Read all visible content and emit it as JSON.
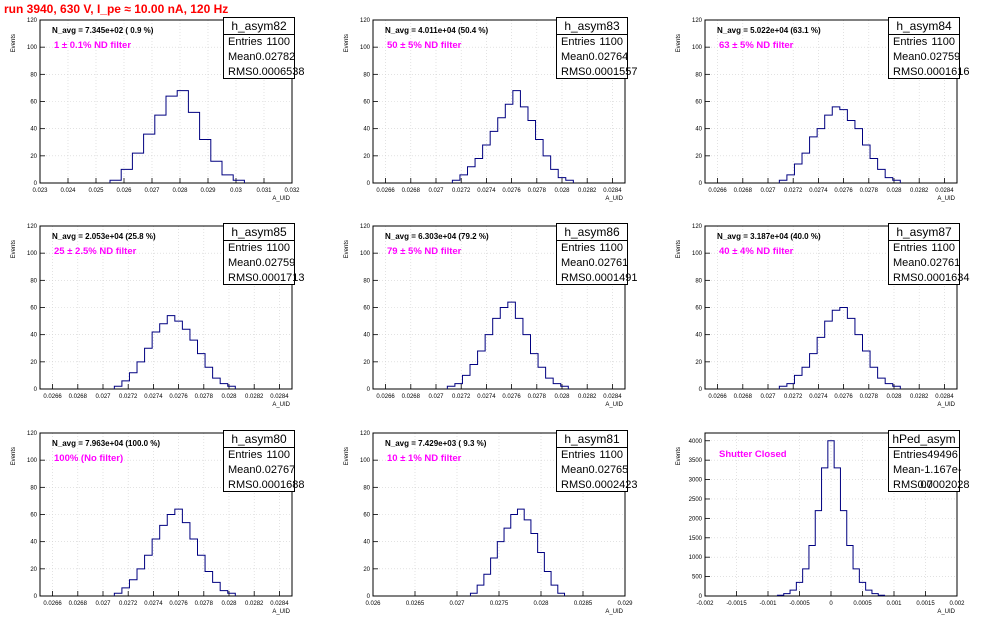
{
  "title": "run 3940,   630 V, I_pe ≈ 10.00 nA, 120 Hz",
  "colors": {
    "title": "#ff0000",
    "filter": "#ff00ff",
    "hist": "#000080",
    "grid": "#d0d0d0"
  },
  "axis_labels": {
    "y": "Events",
    "x": "A_UID"
  },
  "panels": [
    {
      "name": "h_asym82",
      "navg": "N_avg = 7.345e+02 ( 0.9 %)",
      "filter": "1 ± 0.1% ND filter",
      "entries": "1100",
      "mean": "0.02782",
      "rms": "0.0006538",
      "x_ticks": [
        "0.023",
        "0.024",
        "0.025",
        "0.026",
        "0.027",
        "0.028",
        "0.029",
        "0.03",
        "0.031",
        "0.032"
      ],
      "y_ticks": [
        "0",
        "20",
        "40",
        "60",
        "80",
        "100",
        "120"
      ]
    },
    {
      "name": "h_asym83",
      "navg": "N_avg = 4.011e+04 (50.4 %)",
      "filter": "50 ± 5% ND filter",
      "entries": "1100",
      "mean": "0.02764",
      "rms": "0.0001557",
      "x_ticks": [
        "0.0266",
        "0.0268",
        "0.027",
        "0.0272",
        "0.0274",
        "0.0276",
        "0.0278",
        "0.028",
        "0.0282",
        "0.0284"
      ],
      "y_ticks": [
        "0",
        "20",
        "40",
        "60",
        "80",
        "100",
        "120"
      ]
    },
    {
      "name": "h_asym84",
      "navg": "N_avg = 5.022e+04 (63.1 %)",
      "filter": "63 ± 5% ND filter",
      "entries": "1100",
      "mean": "0.02759",
      "rms": "0.0001616",
      "x_ticks": [
        "0.0266",
        "0.0268",
        "0.027",
        "0.0272",
        "0.0274",
        "0.0276",
        "0.0278",
        "0.028",
        "0.0282",
        "0.0284"
      ],
      "y_ticks": [
        "0",
        "20",
        "40",
        "60",
        "80",
        "100",
        "120"
      ]
    },
    {
      "name": "h_asym85",
      "navg": "N_avg = 2.053e+04 (25.8 %)",
      "filter": "25 ± 2.5% ND filter",
      "entries": "1100",
      "mean": "0.02759",
      "rms": "0.0001713",
      "x_ticks": [
        "0.0266",
        "0.0268",
        "0.027",
        "0.0272",
        "0.0274",
        "0.0276",
        "0.0278",
        "0.028",
        "0.0282",
        "0.0284"
      ],
      "y_ticks": [
        "0",
        "20",
        "40",
        "60",
        "80",
        "100",
        "120"
      ]
    },
    {
      "name": "h_asym86",
      "navg": "N_avg = 6.303e+04 (79.2 %)",
      "filter": "79 ± 5% ND filter",
      "entries": "1100",
      "mean": "0.02761",
      "rms": "0.0001491",
      "x_ticks": [
        "0.0266",
        "0.0268",
        "0.027",
        "0.0272",
        "0.0274",
        "0.0276",
        "0.0278",
        "0.028",
        "0.0282",
        "0.0284"
      ],
      "y_ticks": [
        "0",
        "20",
        "40",
        "60",
        "80",
        "100",
        "120"
      ]
    },
    {
      "name": "h_asym87",
      "navg": "N_avg = 3.187e+04 (40.0 %)",
      "filter": "40 ± 4% ND filter",
      "entries": "1100",
      "mean": "0.02761",
      "rms": "0.0001634",
      "x_ticks": [
        "0.0266",
        "0.0268",
        "0.027",
        "0.0272",
        "0.0274",
        "0.0276",
        "0.0278",
        "0.028",
        "0.0282",
        "0.0284"
      ],
      "y_ticks": [
        "0",
        "20",
        "40",
        "60",
        "80",
        "100",
        "120"
      ]
    },
    {
      "name": "h_asym80",
      "navg": "N_avg = 7.963e+04 (100.0 %)",
      "filter": "100% (No filter)",
      "entries": "1100",
      "mean": "0.02767",
      "rms": "0.0001688",
      "x_ticks": [
        "0.0266",
        "0.0268",
        "0.027",
        "0.0272",
        "0.0274",
        "0.0276",
        "0.0278",
        "0.028",
        "0.0282",
        "0.0284"
      ],
      "y_ticks": [
        "0",
        "20",
        "40",
        "60",
        "80",
        "100",
        "120"
      ]
    },
    {
      "name": "h_asym81",
      "navg": "N_avg = 7.429e+03 ( 9.3 %)",
      "filter": "10 ± 1% ND filter",
      "entries": "1100",
      "mean": "0.02765",
      "rms": "0.0002423",
      "x_ticks": [
        "0.026",
        "0.0265",
        "0.027",
        "0.0275",
        "0.028",
        "0.0285",
        "0.029"
      ],
      "y_ticks": [
        "0",
        "20",
        "40",
        "60",
        "80",
        "100",
        "120"
      ]
    },
    {
      "name": "hPed_asym",
      "navg": "",
      "filter": "Shutter Closed",
      "entries": "49496",
      "mean": "-1.167e-07",
      "rms": "0.0002028",
      "x_ticks": [
        "-0.002",
        "-0.0015",
        "-0.001",
        "-0.0005",
        "0",
        "0.0005",
        "0.001",
        "0.0015",
        "0.002"
      ],
      "y_ticks": [
        "0",
        "500",
        "1000",
        "1500",
        "2000",
        "2500",
        "3000",
        "3500",
        "4000"
      ]
    }
  ],
  "chart_data": [
    {
      "type": "histogram",
      "title": "h_asym82",
      "xlim": [
        0.023,
        0.032
      ],
      "ylim": [
        0,
        120
      ],
      "grid": true,
      "x": [
        0.0257,
        0.0261,
        0.0265,
        0.0269,
        0.0273,
        0.0277,
        0.0281,
        0.0285,
        0.0289,
        0.0293,
        0.0297,
        0.0301
      ],
      "values": [
        2,
        10,
        22,
        36,
        50,
        64,
        68,
        52,
        32,
        16,
        6,
        2
      ]
    },
    {
      "type": "histogram",
      "title": "h_asym83",
      "xlim": [
        0.0265,
        0.0285
      ],
      "ylim": [
        0,
        120
      ],
      "grid": true,
      "x": [
        0.02716,
        0.02722,
        0.02728,
        0.02734,
        0.0274,
        0.02746,
        0.02752,
        0.02758,
        0.02764,
        0.0277,
        0.02776,
        0.02782,
        0.02788,
        0.02794,
        0.028,
        0.02806
      ],
      "values": [
        2,
        6,
        12,
        18,
        28,
        38,
        48,
        58,
        68,
        56,
        46,
        32,
        20,
        10,
        4,
        2
      ]
    },
    {
      "type": "histogram",
      "title": "h_asym84",
      "xlim": [
        0.0265,
        0.0285
      ],
      "ylim": [
        0,
        120
      ],
      "grid": true,
      "x": [
        0.02712,
        0.02718,
        0.02724,
        0.0273,
        0.02736,
        0.02742,
        0.02748,
        0.02754,
        0.0276,
        0.02766,
        0.02772,
        0.02778,
        0.02784,
        0.0279,
        0.02796,
        0.02802
      ],
      "values": [
        2,
        6,
        14,
        22,
        34,
        40,
        50,
        56,
        54,
        46,
        40,
        28,
        18,
        10,
        4,
        2
      ]
    },
    {
      "type": "histogram",
      "title": "h_asym85",
      "xlim": [
        0.0265,
        0.0285
      ],
      "ylim": [
        0,
        120
      ],
      "grid": true,
      "x": [
        0.02712,
        0.02718,
        0.02724,
        0.0273,
        0.02736,
        0.02742,
        0.02748,
        0.02754,
        0.0276,
        0.02766,
        0.02772,
        0.02778,
        0.02784,
        0.0279,
        0.02796,
        0.02802
      ],
      "values": [
        2,
        6,
        12,
        20,
        30,
        42,
        48,
        54,
        50,
        44,
        36,
        26,
        16,
        8,
        4,
        2
      ]
    },
    {
      "type": "histogram",
      "title": "h_asym86",
      "xlim": [
        0.0265,
        0.0285
      ],
      "ylim": [
        0,
        120
      ],
      "grid": true,
      "x": [
        0.02712,
        0.02718,
        0.02724,
        0.0273,
        0.02736,
        0.02742,
        0.02748,
        0.02754,
        0.0276,
        0.02766,
        0.02772,
        0.02778,
        0.02784,
        0.0279,
        0.02796,
        0.02802
      ],
      "values": [
        2,
        4,
        10,
        18,
        28,
        40,
        52,
        60,
        64,
        52,
        40,
        26,
        16,
        8,
        4,
        2
      ]
    },
    {
      "type": "histogram",
      "title": "h_asym87",
      "xlim": [
        0.0265,
        0.0285
      ],
      "ylim": [
        0,
        120
      ],
      "grid": true,
      "x": [
        0.02712,
        0.02718,
        0.02724,
        0.0273,
        0.02736,
        0.02742,
        0.02748,
        0.02754,
        0.0276,
        0.02766,
        0.02772,
        0.02778,
        0.02784,
        0.0279,
        0.02796,
        0.02802
      ],
      "values": [
        2,
        4,
        10,
        16,
        26,
        38,
        50,
        58,
        60,
        52,
        40,
        28,
        16,
        8,
        4,
        2
      ]
    },
    {
      "type": "histogram",
      "title": "h_asym80",
      "xlim": [
        0.0265,
        0.0285
      ],
      "ylim": [
        0,
        120
      ],
      "grid": true,
      "x": [
        0.02712,
        0.02718,
        0.02724,
        0.0273,
        0.02736,
        0.02742,
        0.02748,
        0.02754,
        0.0276,
        0.02766,
        0.02772,
        0.02778,
        0.02784,
        0.0279,
        0.02796,
        0.02802
      ],
      "values": [
        2,
        6,
        12,
        20,
        30,
        42,
        52,
        60,
        64,
        54,
        42,
        30,
        18,
        10,
        4,
        2
      ]
    },
    {
      "type": "histogram",
      "title": "h_asym81",
      "xlim": [
        0.026,
        0.029
      ],
      "ylim": [
        0,
        120
      ],
      "grid": true,
      "x": [
        0.0272,
        0.02728,
        0.02736,
        0.02744,
        0.02752,
        0.0276,
        0.02768,
        0.02776,
        0.02784,
        0.02792,
        0.028,
        0.02808,
        0.02816,
        0.02824
      ],
      "values": [
        2,
        8,
        16,
        28,
        40,
        50,
        60,
        64,
        56,
        46,
        32,
        18,
        8,
        2
      ]
    },
    {
      "type": "histogram",
      "title": "hPed_asym",
      "xlim": [
        -0.002,
        0.002
      ],
      "ylim": [
        0,
        4200
      ],
      "grid": true,
      "x": [
        -0.0008,
        -0.0007,
        -0.0006,
        -0.0005,
        -0.0004,
        -0.0003,
        -0.0002,
        -0.0001,
        0,
        0.0001,
        0.0002,
        0.0003,
        0.0004,
        0.0005,
        0.0006,
        0.0007,
        0.0008
      ],
      "values": [
        20,
        60,
        150,
        350,
        700,
        1300,
        2200,
        3300,
        4000,
        3300,
        2200,
        1300,
        700,
        350,
        150,
        60,
        20
      ]
    }
  ]
}
